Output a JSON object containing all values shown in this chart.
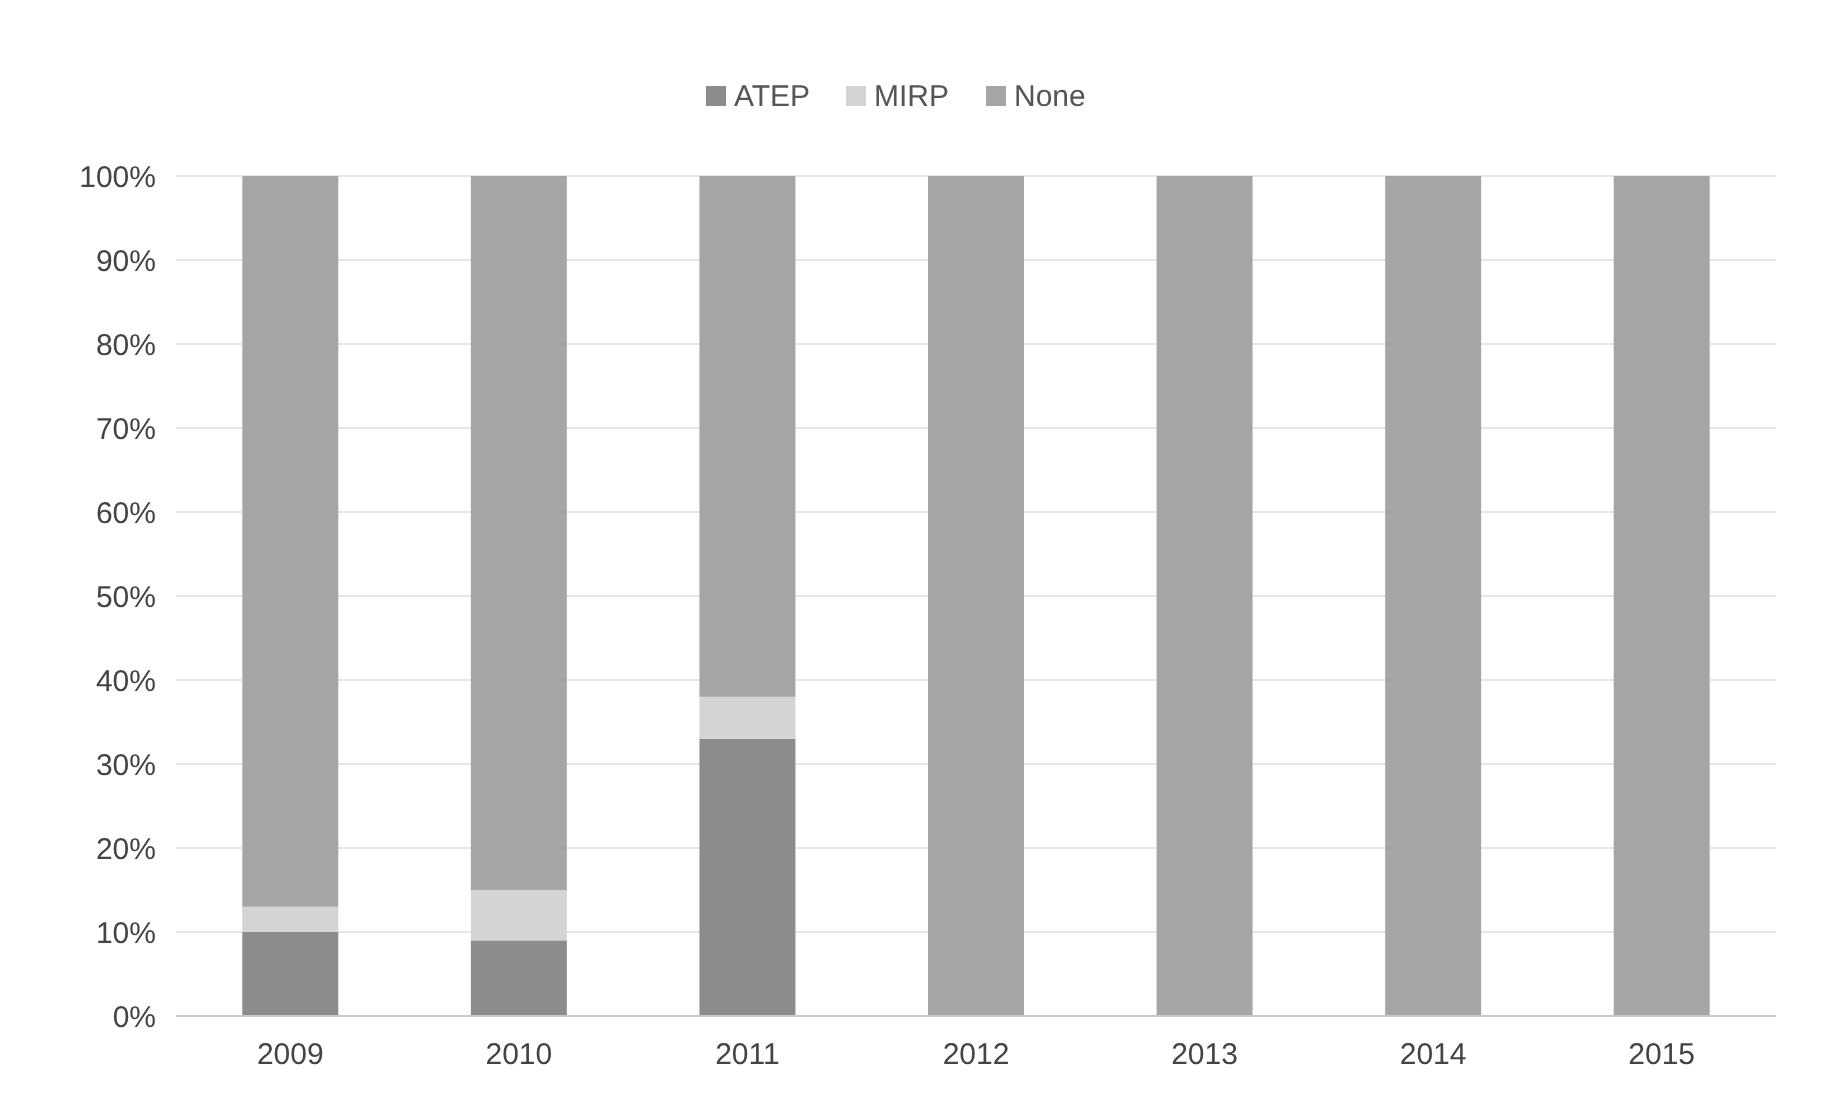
{
  "chart_data": {
    "type": "bar",
    "stacked": true,
    "categories": [
      "2009",
      "2010",
      "2011",
      "2012",
      "2013",
      "2014",
      "2015"
    ],
    "series": [
      {
        "name": "ATEP",
        "color": "#8c8c8c",
        "values": [
          10,
          9,
          33,
          0,
          0,
          0,
          0
        ]
      },
      {
        "name": "MIRP",
        "color": "#d4d4d4",
        "values": [
          3,
          6,
          5,
          0,
          0,
          0,
          0
        ]
      },
      {
        "name": "None",
        "color": "#a6a6a6",
        "values": [
          87,
          85,
          62,
          100,
          100,
          100,
          100
        ]
      }
    ],
    "ylim": [
      0,
      100
    ],
    "yticks": [
      {
        "value": 0,
        "label": "0%"
      },
      {
        "value": 10,
        "label": "10%"
      },
      {
        "value": 20,
        "label": "20%"
      },
      {
        "value": 30,
        "label": "30%"
      },
      {
        "value": 40,
        "label": "40%"
      },
      {
        "value": 50,
        "label": "50%"
      },
      {
        "value": 60,
        "label": "60%"
      },
      {
        "value": 70,
        "label": "70%"
      },
      {
        "value": 80,
        "label": "80%"
      },
      {
        "value": 90,
        "label": "90%"
      },
      {
        "value": 100,
        "label": "100%"
      }
    ],
    "grid": "y",
    "legend": "top"
  }
}
